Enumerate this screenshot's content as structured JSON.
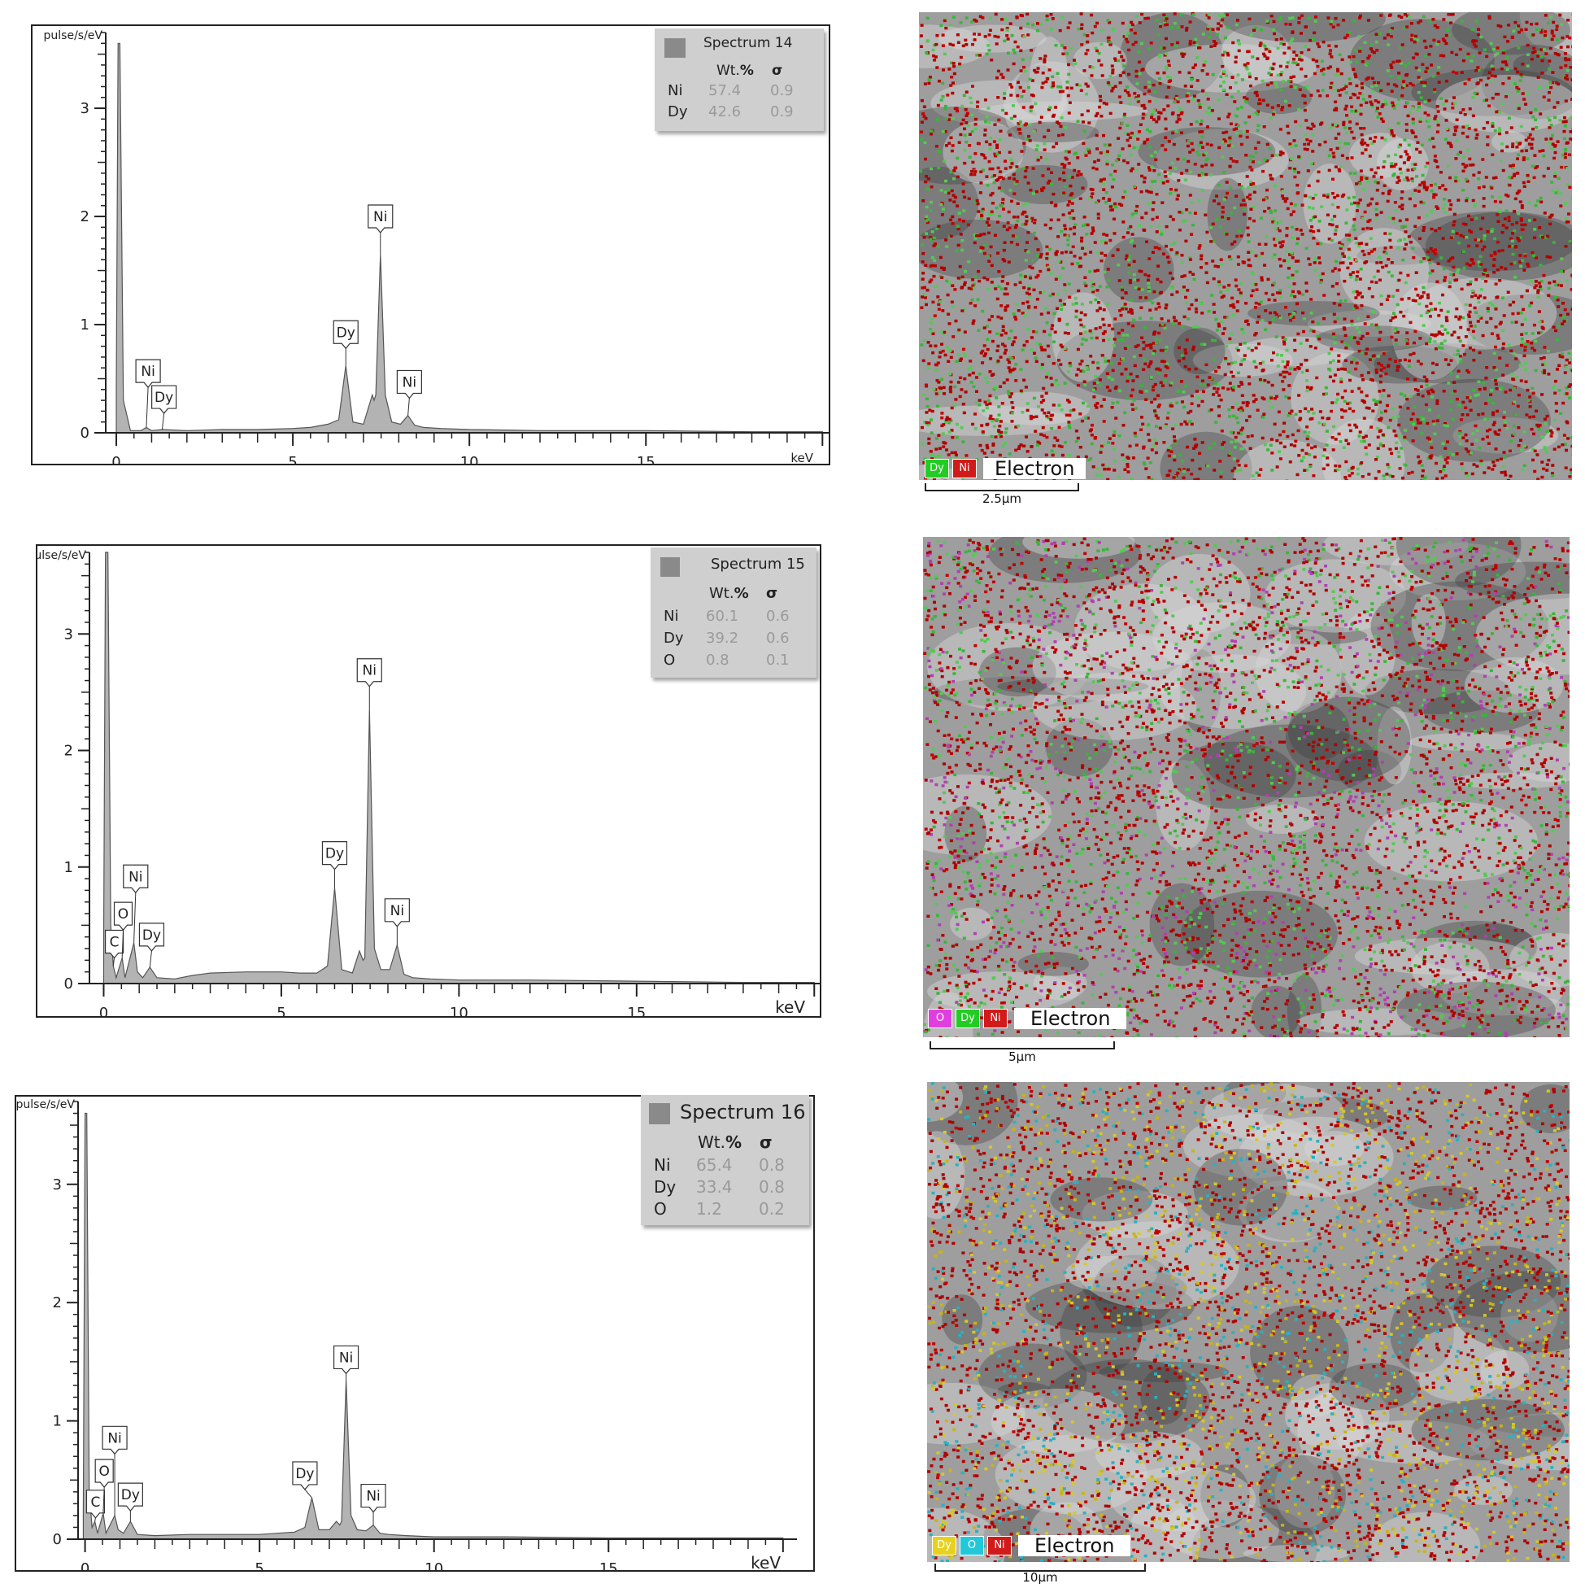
{
  "panels": [
    {
      "chart_data": {
        "type": "area",
        "title": "",
        "xlabel": "keV",
        "ylabel": "pulse/s/eV",
        "xlim": [
          -0.3,
          20.2
        ],
        "ylim": [
          0,
          3.7
        ],
        "xticks": [
          0,
          5,
          10,
          15
        ],
        "yticks": [
          0,
          1,
          2,
          3
        ],
        "grid": false,
        "legend_position": "top-right",
        "series": [
          {
            "x": [
              0.0,
              0.05,
              0.1,
              0.2,
              0.4,
              0.7,
              0.85,
              1.0,
              1.3,
              2.0,
              3.0,
              4.0,
              5.0,
              5.5,
              6.0,
              6.3,
              6.5,
              6.7,
              7.0,
              7.25,
              7.3,
              7.35,
              7.48,
              7.62,
              7.8,
              8.05,
              8.26,
              8.45,
              8.7,
              9.2,
              10.0,
              12.0,
              15.0,
              18.0,
              20.0
            ],
            "values": [
              0.4,
              3.6,
              3.6,
              0.3,
              0.02,
              0.02,
              0.05,
              0.02,
              0.03,
              0.02,
              0.03,
              0.03,
              0.04,
              0.05,
              0.08,
              0.12,
              0.62,
              0.1,
              0.08,
              0.35,
              0.3,
              0.35,
              1.65,
              0.35,
              0.1,
              0.08,
              0.16,
              0.07,
              0.05,
              0.04,
              0.03,
              0.02,
              0.02,
              0.01,
              0.01
            ]
          }
        ],
        "peak_labels": [
          {
            "label": "Ni",
            "x": 0.85,
            "y": 0.05,
            "box_x": 0.9,
            "box_y": 0.42
          },
          {
            "label": "Dy",
            "x": 1.3,
            "y": 0.03,
            "box_x": 1.35,
            "box_y": 0.18
          },
          {
            "label": "Dy",
            "x": 6.5,
            "y": 0.62,
            "box_x": 6.5,
            "box_y": 0.78
          },
          {
            "label": "Ni",
            "x": 7.48,
            "y": 1.65,
            "box_x": 7.48,
            "box_y": 1.85
          },
          {
            "label": "Ni",
            "x": 8.26,
            "y": 0.16,
            "box_x": 8.3,
            "box_y": 0.32
          }
        ]
      },
      "legend": {
        "title": "Spectrum 14",
        "wt_header": "Wt.",
        "wt_unit": "%",
        "sigma_header": "σ",
        "rows": [
          {
            "el": "Ni",
            "wt": "57.4",
            "sigma": "0.9"
          },
          {
            "el": "Dy",
            "wt": "42.6",
            "sigma": "0.9"
          }
        ]
      },
      "map": {
        "chips": [
          {
            "label": "Dy",
            "color": "#22cc22"
          },
          {
            "label": "Ni",
            "color": "#d11a1a"
          }
        ],
        "channel_label": "Electron",
        "scale": "2.5μm",
        "dot_colors": [
          "#b00000",
          "#b00000",
          "#b00000",
          "#c40000",
          "#3ab53a",
          "#55c855"
        ]
      }
    },
    {
      "chart_data": {
        "type": "area",
        "title": "",
        "xlabel": "keV",
        "ylabel": "pulse/s/eV",
        "xlim": [
          -0.4,
          20.2
        ],
        "ylim": [
          0,
          3.7
        ],
        "xticks": [
          0,
          5,
          10,
          15
        ],
        "yticks": [
          0,
          1,
          2,
          3
        ],
        "grid": false,
        "legend_position": "top-right",
        "series": [
          {
            "x": [
              0.0,
              0.05,
              0.12,
              0.2,
              0.27,
              0.35,
              0.52,
              0.6,
              0.85,
              0.95,
              1.1,
              1.3,
              1.5,
              2.0,
              2.5,
              3.0,
              4.0,
              5.0,
              5.5,
              6.0,
              6.3,
              6.5,
              6.7,
              7.0,
              7.2,
              7.3,
              7.35,
              7.48,
              7.62,
              7.8,
              8.05,
              8.26,
              8.45,
              8.7,
              9.2,
              10.0,
              12.0,
              15.0,
              18.0,
              20.0
            ],
            "values": [
              0.4,
              3.7,
              3.7,
              0.5,
              0.15,
              0.05,
              0.22,
              0.05,
              0.35,
              0.1,
              0.05,
              0.14,
              0.05,
              0.04,
              0.07,
              0.09,
              0.1,
              0.1,
              0.09,
              0.09,
              0.15,
              0.82,
              0.12,
              0.09,
              0.28,
              0.2,
              0.22,
              2.35,
              0.3,
              0.12,
              0.12,
              0.33,
              0.08,
              0.05,
              0.04,
              0.03,
              0.03,
              0.02,
              0.01,
              0.01
            ]
          }
        ],
        "peak_labels": [
          {
            "label": "C",
            "x": 0.27,
            "y": 0.15,
            "box_x": 0.3,
            "box_y": 0.22
          },
          {
            "label": "O",
            "x": 0.52,
            "y": 0.22,
            "box_x": 0.55,
            "box_y": 0.46
          },
          {
            "label": "Ni",
            "x": 0.85,
            "y": 0.35,
            "box_x": 0.9,
            "box_y": 0.78
          },
          {
            "label": "Dy",
            "x": 1.3,
            "y": 0.14,
            "box_x": 1.35,
            "box_y": 0.28
          },
          {
            "label": "Dy",
            "x": 6.5,
            "y": 0.82,
            "box_x": 6.5,
            "box_y": 0.98
          },
          {
            "label": "Ni",
            "x": 7.48,
            "y": 2.35,
            "box_x": 7.48,
            "box_y": 2.55
          },
          {
            "label": "Ni",
            "x": 8.26,
            "y": 0.33,
            "box_x": 8.26,
            "box_y": 0.49
          }
        ]
      },
      "legend": {
        "title": "Spectrum 15",
        "wt_header": "Wt.",
        "wt_unit": "%",
        "sigma_header": "σ",
        "rows": [
          {
            "el": "Ni",
            "wt": "60.1",
            "sigma": "0.6"
          },
          {
            "el": "Dy",
            "wt": "39.2",
            "sigma": "0.6"
          },
          {
            "el": "O",
            "wt": "0.8",
            "sigma": "0.1"
          }
        ]
      },
      "map": {
        "chips": [
          {
            "label": "O",
            "color": "#e03ee0"
          },
          {
            "label": "Dy",
            "color": "#22cc22"
          },
          {
            "label": "Ni",
            "color": "#d11a1a"
          }
        ],
        "channel_label": "Electron",
        "scale": "5μm",
        "dot_colors": [
          "#b00000",
          "#b00000",
          "#b00000",
          "#c40000",
          "#3ab53a",
          "#55c855",
          "#b040b0"
        ]
      }
    },
    {
      "chart_data": {
        "type": "area",
        "title": "",
        "xlabel": "keV",
        "ylabel": "pulse/s/eV",
        "xlim": [
          -0.2,
          20.4
        ],
        "ylim": [
          0,
          3.7
        ],
        "xticks": [
          0,
          5,
          10,
          15
        ],
        "yticks": [
          0,
          1,
          2,
          3
        ],
        "grid": false,
        "legend_position": "top-right",
        "series": [
          {
            "x": [
              -0.05,
              0.0,
              0.05,
              0.12,
              0.2,
              0.28,
              0.36,
              0.52,
              0.6,
              0.85,
              0.95,
              1.1,
              1.3,
              1.5,
              2.0,
              3.0,
              4.0,
              5.0,
              5.5,
              6.0,
              6.3,
              6.5,
              6.7,
              7.0,
              7.2,
              7.3,
              7.35,
              7.48,
              7.62,
              7.8,
              8.05,
              8.26,
              8.45,
              8.7,
              9.2,
              10.0,
              12.0,
              15.0,
              18.0,
              20.0
            ],
            "values": [
              0.2,
              3.6,
              3.6,
              0.4,
              0.1,
              0.15,
              0.05,
              0.22,
              0.05,
              0.2,
              0.08,
              0.05,
              0.15,
              0.04,
              0.03,
              0.04,
              0.04,
              0.04,
              0.05,
              0.06,
              0.1,
              0.35,
              0.08,
              0.08,
              0.15,
              0.12,
              0.15,
              1.35,
              0.2,
              0.08,
              0.07,
              0.12,
              0.05,
              0.04,
              0.03,
              0.02,
              0.02,
              0.01,
              0.01,
              0.01
            ]
          }
        ],
        "peak_labels": [
          {
            "label": "C",
            "x": 0.28,
            "y": 0.15,
            "box_x": 0.3,
            "box_y": 0.18
          },
          {
            "label": "O",
            "x": 0.52,
            "y": 0.22,
            "box_x": 0.55,
            "box_y": 0.44
          },
          {
            "label": "Ni",
            "x": 0.85,
            "y": 0.2,
            "box_x": 0.85,
            "box_y": 0.72
          },
          {
            "label": "Dy",
            "x": 1.3,
            "y": 0.15,
            "box_x": 1.3,
            "box_y": 0.24
          },
          {
            "label": "Dy",
            "x": 6.5,
            "y": 0.35,
            "box_x": 6.3,
            "box_y": 0.42
          },
          {
            "label": "Ni",
            "x": 7.48,
            "y": 1.35,
            "box_x": 7.48,
            "box_y": 1.4
          },
          {
            "label": "Ni",
            "x": 8.26,
            "y": 0.12,
            "box_x": 8.26,
            "box_y": 0.23
          }
        ]
      },
      "legend": {
        "title": "Spectrum 16",
        "wt_header": "Wt.",
        "wt_unit": "%",
        "sigma_header": "σ",
        "rows": [
          {
            "el": "Ni",
            "wt": "65.4",
            "sigma": "0.8"
          },
          {
            "el": "Dy",
            "wt": "33.4",
            "sigma": "0.8"
          },
          {
            "el": "O",
            "wt": "1.2",
            "sigma": "0.2"
          }
        ]
      },
      "map": {
        "chips": [
          {
            "label": "Dy",
            "color": "#e6d21c"
          },
          {
            "label": "O",
            "color": "#22c8d8"
          },
          {
            "label": "Ni",
            "color": "#d11a1a"
          }
        ],
        "channel_label": "Electron",
        "scale": "10μm",
        "dot_colors": [
          "#b00000",
          "#b00000",
          "#b00000",
          "#c40000",
          "#c8b41a",
          "#d6c82a",
          "#2cb0c0"
        ]
      }
    }
  ]
}
